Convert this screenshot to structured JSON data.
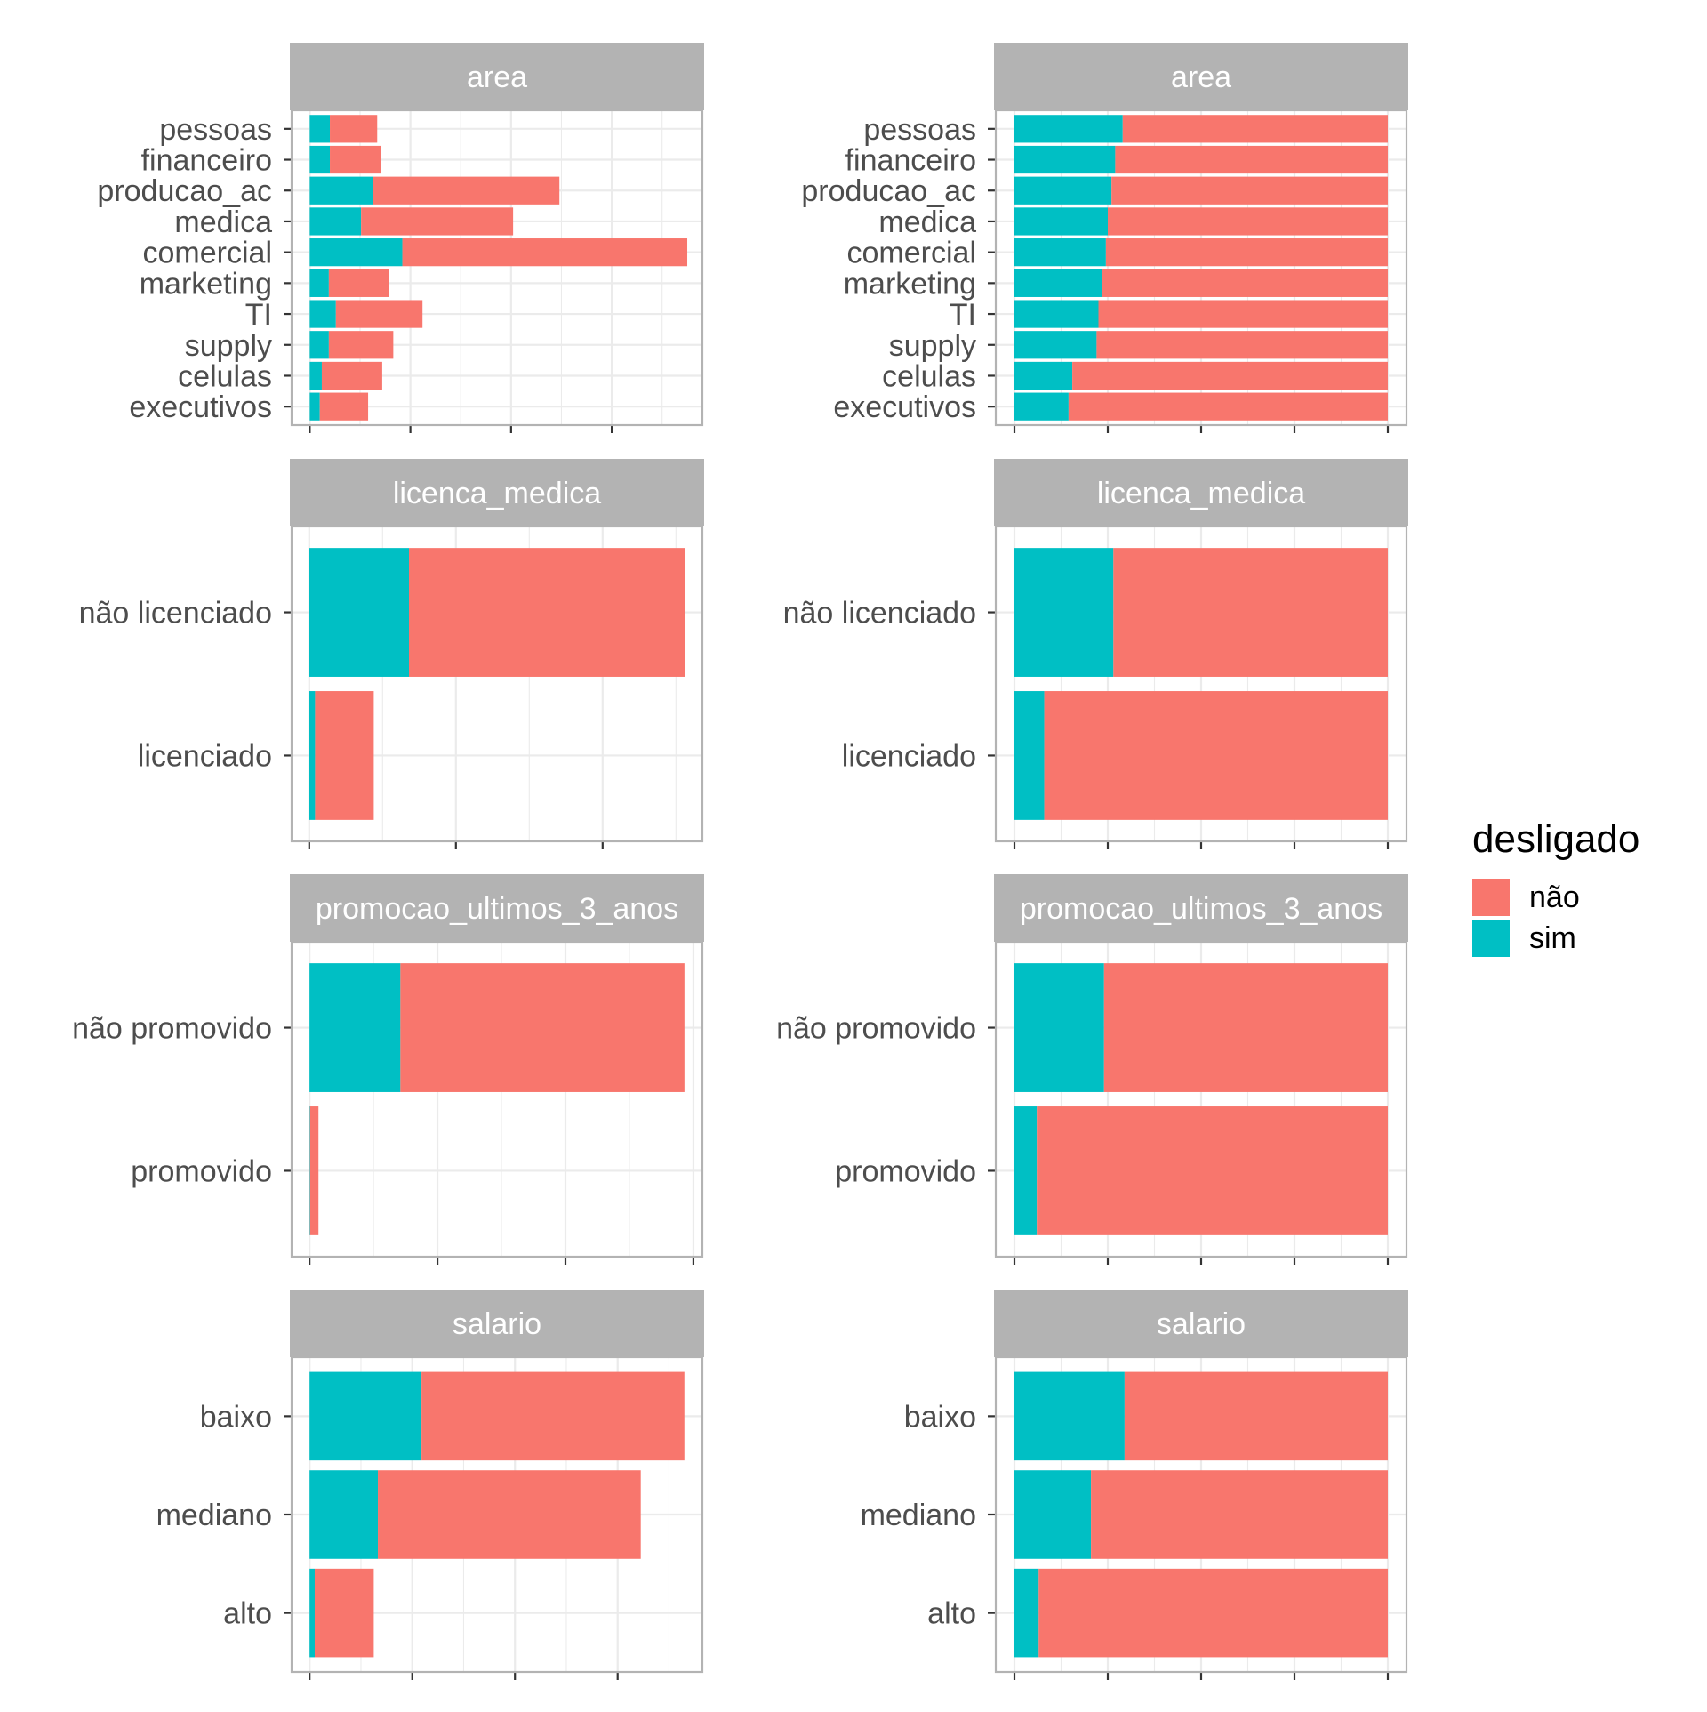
{
  "colors": {
    "nao": "#F8766D",
    "sim": "#00BFC4",
    "strip": "#B3B3B3",
    "strip_text": "#FFFFFF",
    "axis_text": "#4D4D4D",
    "grid": "#EBEBEB",
    "border": "#B3B3B3"
  },
  "legend": {
    "title": "desligado",
    "items": [
      {
        "label": "não",
        "color": "#F8766D"
      },
      {
        "label": "sim",
        "color": "#00BFC4"
      }
    ]
  },
  "chart_data": [
    {
      "type": "bar",
      "orientation": "horizontal",
      "stacked": true,
      "mode": "count",
      "facet": "area",
      "categories": [
        "pessoas",
        "financeiro",
        "producao_ac",
        "medica",
        "comercial",
        "marketing",
        "TI",
        "supply",
        "celulas",
        "executivos"
      ],
      "series": [
        {
          "name": "sim",
          "values": [
            20,
            20,
            63,
            51,
            92,
            19,
            26,
            19,
            12,
            10
          ]
        },
        {
          "name": "não",
          "values": [
            47,
            51,
            185,
            151,
            283,
            60,
            86,
            64,
            60,
            48
          ]
        }
      ],
      "xlim": [
        -18,
        390
      ],
      "grid": true
    },
    {
      "type": "bar",
      "orientation": "horizontal",
      "stacked": true,
      "mode": "proportion",
      "facet": "area",
      "categories": [
        "pessoas",
        "financeiro",
        "producao_ac",
        "medica",
        "comercial",
        "marketing",
        "TI",
        "supply",
        "celulas",
        "executivos"
      ],
      "series": [
        {
          "name": "sim",
          "values": [
            0.29,
            0.27,
            0.26,
            0.25,
            0.245,
            0.235,
            0.225,
            0.22,
            0.155,
            0.145
          ]
        },
        {
          "name": "não",
          "values": [
            0.71,
            0.73,
            0.74,
            0.75,
            0.755,
            0.765,
            0.775,
            0.78,
            0.845,
            0.855
          ]
        }
      ],
      "xlim": [
        -0.05,
        1.05
      ],
      "grid": true
    },
    {
      "type": "bar",
      "orientation": "horizontal",
      "stacked": true,
      "mode": "count",
      "facet": "licenca_medica",
      "categories": [
        "não licenciado",
        "licenciado"
      ],
      "series": [
        {
          "name": "sim",
          "values": [
            340,
            20
          ]
        },
        {
          "name": "não",
          "values": [
            940,
            200
          ]
        }
      ],
      "xlim": [
        -60,
        1340
      ],
      "grid": true
    },
    {
      "type": "bar",
      "orientation": "horizontal",
      "stacked": true,
      "mode": "proportion",
      "facet": "licenca_medica",
      "categories": [
        "não licenciado",
        "licenciado"
      ],
      "series": [
        {
          "name": "sim",
          "values": [
            0.265,
            0.08
          ]
        },
        {
          "name": "não",
          "values": [
            0.735,
            0.92
          ]
        }
      ],
      "xlim": [
        -0.05,
        1.05
      ],
      "grid": true
    },
    {
      "type": "bar",
      "orientation": "horizontal",
      "stacked": true,
      "mode": "count",
      "facet": "promocao_ultimos_3_anos",
      "categories": [
        "não promovido",
        "promovido"
      ],
      "series": [
        {
          "name": "sim",
          "values": [
            355,
            2
          ]
        },
        {
          "name": "não",
          "values": [
            1110,
            33
          ]
        }
      ],
      "xlim": [
        -70,
        1535
      ],
      "grid": true
    },
    {
      "type": "bar",
      "orientation": "horizontal",
      "stacked": true,
      "mode": "proportion",
      "facet": "promocao_ultimos_3_anos",
      "categories": [
        "não promovido",
        "promovido"
      ],
      "series": [
        {
          "name": "sim",
          "values": [
            0.24,
            0.06
          ]
        },
        {
          "name": "não",
          "values": [
            0.76,
            0.94
          ]
        }
      ],
      "xlim": [
        -0.05,
        1.05
      ],
      "grid": true
    },
    {
      "type": "bar",
      "orientation": "horizontal",
      "stacked": true,
      "mode": "count",
      "facet": "salario",
      "categories": [
        "baixo",
        "mediano",
        "alto"
      ],
      "series": [
        {
          "name": "sim",
          "values": [
            218,
            133,
            10
          ]
        },
        {
          "name": "não",
          "values": [
            512,
            512,
            115
          ]
        }
      ],
      "xlim": [
        -35,
        765
      ],
      "grid": true
    },
    {
      "type": "bar",
      "orientation": "horizontal",
      "stacked": true,
      "mode": "proportion",
      "facet": "salario",
      "categories": [
        "baixo",
        "mediano",
        "alto"
      ],
      "series": [
        {
          "name": "sim",
          "values": [
            0.295,
            0.205,
            0.065
          ]
        },
        {
          "name": "não",
          "values": [
            0.705,
            0.795,
            0.935
          ]
        }
      ],
      "xlim": [
        -0.05,
        1.05
      ],
      "grid": true
    }
  ]
}
